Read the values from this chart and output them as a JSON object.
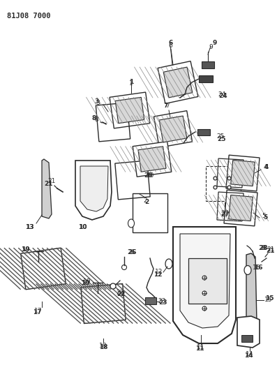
{
  "title_code": "81J08 7000",
  "bg_color": "#ffffff",
  "line_color": "#2a2a2a",
  "figsize": [
    3.97,
    5.33
  ],
  "dpi": 100
}
